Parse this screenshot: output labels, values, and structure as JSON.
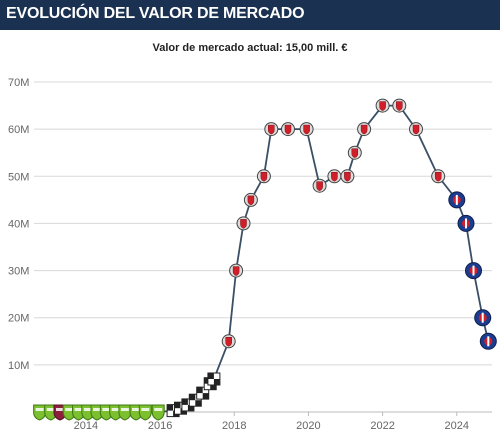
{
  "header": {
    "title": "EVOLUCIÓN DEL VALOR DE MERCADO"
  },
  "subtitle": "Valor de mercado actual: 15,00 mill. €",
  "colors": {
    "header_bg": "#1a3151",
    "line": "#3a4f66",
    "grid": "#d8d8d8",
    "marker_border": "#444444"
  },
  "chart_data": {
    "type": "line",
    "title": "",
    "xlabel": "",
    "ylabel": "",
    "ylim": [
      0,
      70
    ],
    "y_ticks": [
      10,
      20,
      30,
      40,
      50,
      60,
      70
    ],
    "y_tick_labels": [
      "10M",
      "20M",
      "30M",
      "40M",
      "50M",
      "60M",
      "70M"
    ],
    "x_ticks": [
      2014,
      2016,
      2018,
      2020,
      2022,
      2024
    ],
    "x_tick_labels": [
      "2014",
      "2016",
      "2018",
      "2020",
      "2022",
      "2024"
    ],
    "xlim": [
      2012.6,
      2024.95
    ],
    "grid": true,
    "series": [
      {
        "values": [
          {
            "x": 2012.75,
            "y": 0,
            "club": "green"
          },
          {
            "x": 2013.05,
            "y": 0,
            "club": "green"
          },
          {
            "x": 2013.3,
            "y": 0,
            "club": "maroon"
          },
          {
            "x": 2013.55,
            "y": 0,
            "club": "green"
          },
          {
            "x": 2013.8,
            "y": 0,
            "club": "green"
          },
          {
            "x": 2014.05,
            "y": 0,
            "club": "green"
          },
          {
            "x": 2014.3,
            "y": 0,
            "club": "green"
          },
          {
            "x": 2014.55,
            "y": 0,
            "club": "green"
          },
          {
            "x": 2014.8,
            "y": 0,
            "club": "green"
          },
          {
            "x": 2015.05,
            "y": 0,
            "club": "green"
          },
          {
            "x": 2015.35,
            "y": 0,
            "club": "green"
          },
          {
            "x": 2015.6,
            "y": 0,
            "club": "green"
          },
          {
            "x": 2015.95,
            "y": 0,
            "club": "green"
          },
          {
            "x": 2016.35,
            "y": 0.3,
            "club": "checker"
          },
          {
            "x": 2016.55,
            "y": 0.8,
            "club": "checker"
          },
          {
            "x": 2016.75,
            "y": 1.5,
            "club": "checker"
          },
          {
            "x": 2016.95,
            "y": 2.5,
            "club": "checker"
          },
          {
            "x": 2017.15,
            "y": 4,
            "club": "checker"
          },
          {
            "x": 2017.35,
            "y": 6,
            "club": "checker"
          },
          {
            "x": 2017.45,
            "y": 7,
            "club": "checker"
          },
          {
            "x": 2017.85,
            "y": 15,
            "club": "monaco"
          },
          {
            "x": 2018.05,
            "y": 30,
            "club": "monaco"
          },
          {
            "x": 2018.25,
            "y": 40,
            "club": "monaco"
          },
          {
            "x": 2018.45,
            "y": 45,
            "club": "monaco"
          },
          {
            "x": 2018.8,
            "y": 50,
            "club": "monaco"
          },
          {
            "x": 2019.0,
            "y": 60,
            "club": "monaco"
          },
          {
            "x": 2019.45,
            "y": 60,
            "club": "monaco"
          },
          {
            "x": 2019.95,
            "y": 60,
            "club": "monaco"
          },
          {
            "x": 2020.3,
            "y": 48,
            "club": "monaco"
          },
          {
            "x": 2020.7,
            "y": 50,
            "club": "monaco"
          },
          {
            "x": 2021.05,
            "y": 50,
            "club": "monaco"
          },
          {
            "x": 2021.25,
            "y": 55,
            "club": "monaco"
          },
          {
            "x": 2021.5,
            "y": 60,
            "club": "monaco"
          },
          {
            "x": 2022.0,
            "y": 65,
            "club": "monaco"
          },
          {
            "x": 2022.45,
            "y": 65,
            "club": "monaco"
          },
          {
            "x": 2022.9,
            "y": 60,
            "club": "monaco"
          },
          {
            "x": 2023.5,
            "y": 50,
            "club": "monaco"
          },
          {
            "x": 2024.0,
            "y": 45,
            "club": "psg"
          },
          {
            "x": 2024.25,
            "y": 40,
            "club": "psg"
          },
          {
            "x": 2024.45,
            "y": 30,
            "club": "psg"
          },
          {
            "x": 2024.7,
            "y": 20,
            "club": "psg"
          },
          {
            "x": 2024.85,
            "y": 15,
            "club": "psg"
          }
        ]
      }
    ]
  }
}
